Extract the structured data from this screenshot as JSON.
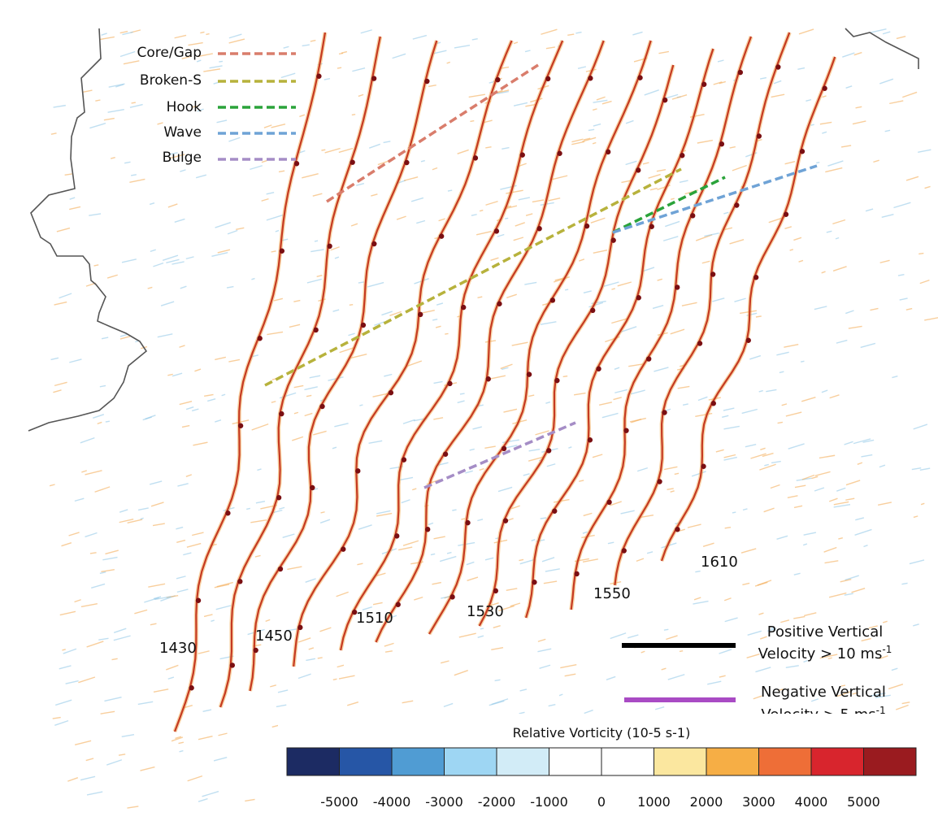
{
  "legend": {
    "features": [
      {
        "label": "Core/Gap",
        "color": "#d97d6c"
      },
      {
        "label": "Broken-S",
        "color": "#b7b23c"
      },
      {
        "label": "Hook",
        "color": "#2aa33a"
      },
      {
        "label": "Wave",
        "color": "#6fa3d6"
      },
      {
        "label": "Bulge",
        "color": "#a58dc6"
      }
    ],
    "vertical_velocity": [
      {
        "label_line1": "Positive Vertical",
        "label_line2": "Velocity > 10 ms",
        "unit_sup": "-1",
        "color": "#000000"
      },
      {
        "label_line1": "Negative Vertical",
        "label_line2": "Velocity > 5 ms",
        "unit_sup": "-1",
        "color": "#a94bc4"
      }
    ]
  },
  "time_labels": [
    "1430",
    "1450",
    "1510",
    "1530",
    "1550",
    "1610"
  ],
  "colorbar": {
    "title": "Relative Vorticity  (10-5 s-1)",
    "colors": [
      "#1c2b63",
      "#2656a6",
      "#509cd3",
      "#9ed6f3",
      "#d2ecf7",
      "#ffffff",
      "#ffffff",
      "#fbe79f",
      "#f6ae45",
      "#ee6e37",
      "#d8252d",
      "#9a1b1f"
    ],
    "tick_labels": [
      "-5000",
      "-4000",
      "-3000",
      "-2000",
      "-1000",
      "0",
      "1000",
      "2000",
      "3000",
      "4000",
      "5000"
    ]
  },
  "colors": {
    "line_main": "#c53a22",
    "line_dark": "#7a0f12",
    "noise_orange": "#f2a54a",
    "noise_blue": "#8cc4e6",
    "border": "#555555"
  }
}
